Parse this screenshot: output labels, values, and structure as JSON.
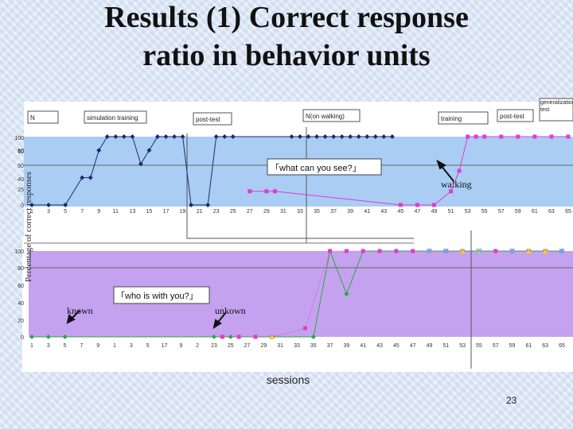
{
  "slide": {
    "title_line1": "Results (1) Correct response",
    "title_line2": "ratio in behavior units",
    "page_number": "23"
  },
  "chart_data": [
    {
      "type": "line",
      "id": "top",
      "ylabel": "Percentage of correct responses",
      "ylim": [
        0,
        100
      ],
      "yticks": [
        "0",
        "25",
        "40",
        "50",
        "60",
        "80",
        "100"
      ],
      "xticks": [
        "1",
        "3",
        "5",
        "7",
        "9",
        "11",
        "13",
        "15",
        "17",
        "19",
        "21",
        "23",
        "25",
        "27",
        "29",
        "31",
        "33",
        "35",
        "37",
        "39",
        "41",
        "43",
        "45",
        "47",
        "49",
        "51",
        "53",
        "55",
        "57",
        "59",
        "61",
        "63",
        "65"
      ],
      "phases": [
        "N",
        "simulation training",
        "post-test",
        "N(on walking)",
        "training",
        "post-test",
        "generalization test"
      ],
      "annotations": {
        "question": "「what can you see?」",
        "arrow_label": "walking"
      },
      "series": [
        {
          "color": "#1f2a70",
          "marker": "diamond",
          "x": [
            1,
            3,
            5,
            7,
            8,
            9,
            10,
            11,
            12,
            13,
            14,
            15,
            16,
            17,
            18,
            19,
            20,
            22,
            23,
            24,
            25,
            32,
            33,
            34,
            35,
            36,
            37,
            38,
            39,
            40,
            41,
            42,
            43,
            44
          ],
          "y": [
            0,
            0,
            0,
            40,
            40,
            80,
            100,
            100,
            100,
            100,
            60,
            80,
            100,
            100,
            100,
            100,
            0,
            0,
            100,
            100,
            100,
            100,
            100,
            100,
            100,
            100,
            100,
            100,
            100,
            100,
            100,
            100,
            100,
            100
          ]
        },
        {
          "color": "#e23bd0",
          "marker": "square",
          "x": [
            27,
            29,
            30,
            45,
            47,
            49,
            51,
            52,
            53,
            54,
            55,
            57,
            59,
            61,
            63,
            65
          ],
          "y": [
            20,
            20,
            20,
            0,
            0,
            0,
            20,
            50,
            100,
            100,
            100,
            100,
            100,
            100,
            100,
            100
          ]
        }
      ]
    },
    {
      "type": "line",
      "id": "bottom",
      "ylim": [
        0,
        100
      ],
      "yticks": [
        "0",
        "20",
        "40",
        "60",
        "80",
        "100"
      ],
      "xticks": [
        "1",
        "3",
        "5",
        "7",
        "9",
        "1",
        "3",
        "5",
        "17",
        "9",
        "2",
        "23",
        "25",
        "27",
        "29",
        "31",
        "33",
        "35",
        "37",
        "39",
        "41",
        "43",
        "45",
        "47",
        "49",
        "51",
        "53",
        "55",
        "57",
        "59",
        "61",
        "63",
        "65"
      ],
      "xlabel": "sessions",
      "annotations": {
        "question": "「who is with you?」",
        "label_known": "known",
        "label_unknown": "unkown"
      },
      "series": [
        {
          "color": "#2aa83a",
          "marker": "diamond",
          "x": [
            1,
            3,
            5,
            23,
            25,
            35,
            37,
            39,
            41,
            43,
            45,
            47,
            49,
            51,
            53,
            55,
            57,
            59,
            61,
            63,
            65
          ],
          "y": [
            0,
            0,
            0,
            0,
            0,
            0,
            100,
            50,
            100,
            100,
            100,
            100,
            100,
            100,
            100,
            100,
            100,
            100,
            100,
            100,
            100
          ]
        },
        {
          "color": "#e23bd0",
          "marker": "square",
          "x": [
            24,
            26,
            28,
            30,
            34,
            37,
            39,
            41,
            43,
            45,
            47,
            49,
            51,
            53,
            55,
            57,
            59,
            61,
            63,
            65
          ],
          "y": [
            0,
            0,
            0,
            0,
            10,
            100,
            100,
            100,
            100,
            100,
            100,
            100,
            100,
            100,
            100,
            100,
            100,
            100,
            100,
            100
          ]
        },
        {
          "color": "#f0d020",
          "marker": "triangle",
          "x": [
            30,
            53,
            55,
            61,
            63
          ],
          "y": [
            0,
            100,
            100,
            100,
            100
          ]
        },
        {
          "color": "#55c8e8",
          "marker": "x",
          "x": [
            49,
            51,
            55,
            59,
            65
          ],
          "y": [
            100,
            100,
            100,
            100,
            100
          ]
        }
      ]
    }
  ]
}
